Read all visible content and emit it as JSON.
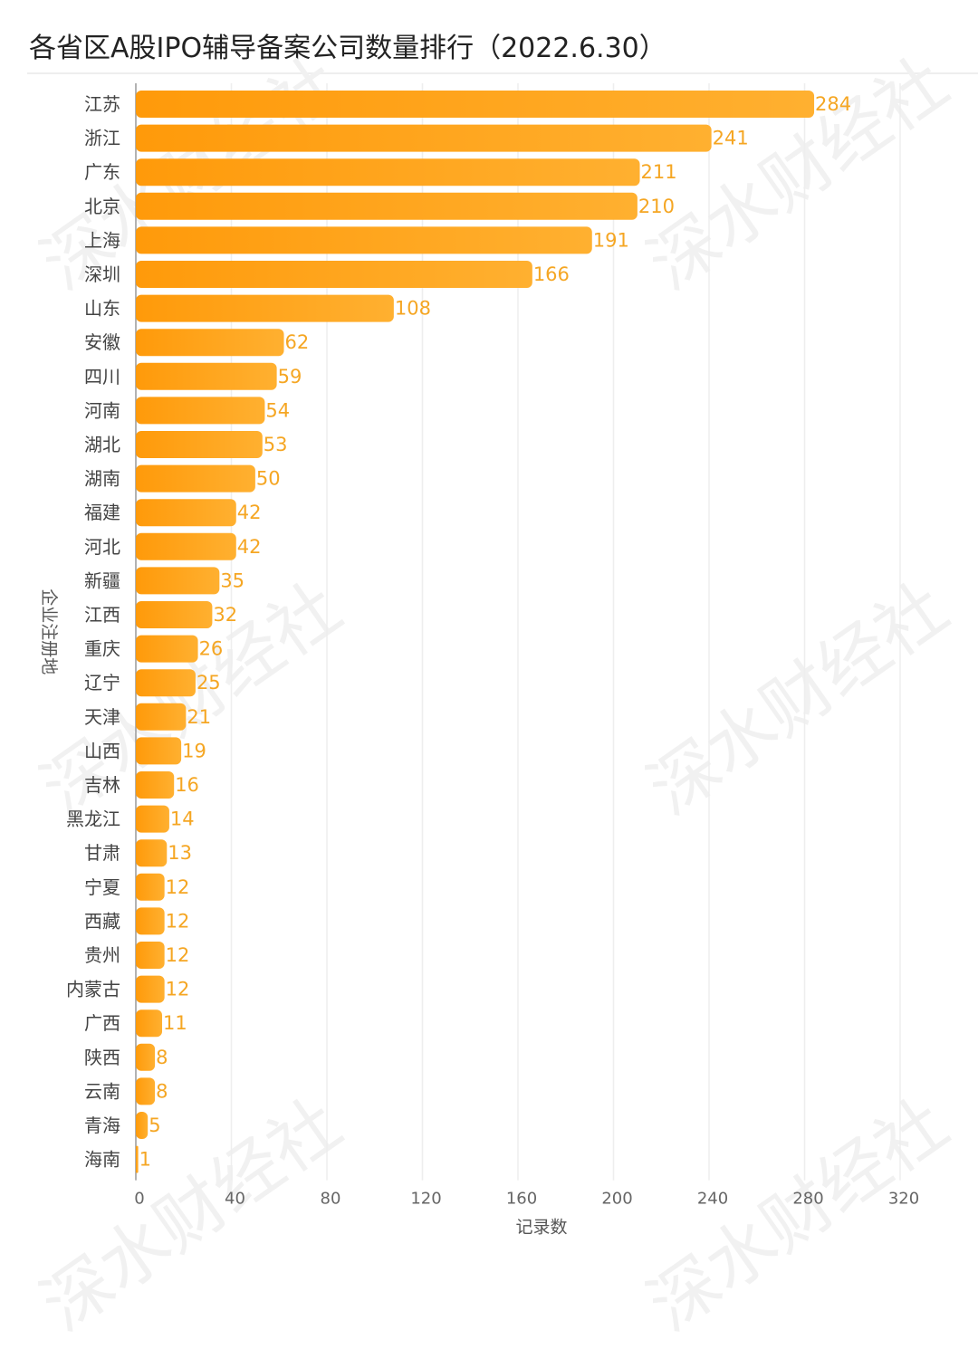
{
  "watermark": "深水财经社",
  "colors": {
    "bar_start": "#ff9a0a",
    "bar_end": "#ffb030",
    "value_label": "#f5a623",
    "grid": "#eeeeee",
    "axis": "#999999"
  },
  "chart_data": {
    "type": "bar",
    "orientation": "horizontal",
    "title": "各省区A股IPO辅导备案公司数量排行（2022.6.30）",
    "xlabel": "记录数",
    "ylabel": "企业注册地",
    "xlim": [
      0,
      320
    ],
    "xticks": [
      0,
      40,
      80,
      120,
      160,
      200,
      240,
      280,
      320
    ],
    "grid": true,
    "categories": [
      "江苏",
      "浙江",
      "广东",
      "北京",
      "上海",
      "深圳",
      "山东",
      "安徽",
      "四川",
      "河南",
      "湖北",
      "湖南",
      "福建",
      "河北",
      "新疆",
      "江西",
      "重庆",
      "辽宁",
      "天津",
      "山西",
      "吉林",
      "黑龙江",
      "甘肃",
      "宁夏",
      "西藏",
      "贵州",
      "内蒙古",
      "广西",
      "陕西",
      "云南",
      "青海",
      "海南"
    ],
    "values": [
      284,
      241,
      211,
      210,
      191,
      166,
      108,
      62,
      59,
      54,
      53,
      50,
      42,
      42,
      35,
      32,
      26,
      25,
      21,
      19,
      16,
      14,
      13,
      12,
      12,
      12,
      12,
      11,
      8,
      8,
      5,
      1
    ]
  }
}
